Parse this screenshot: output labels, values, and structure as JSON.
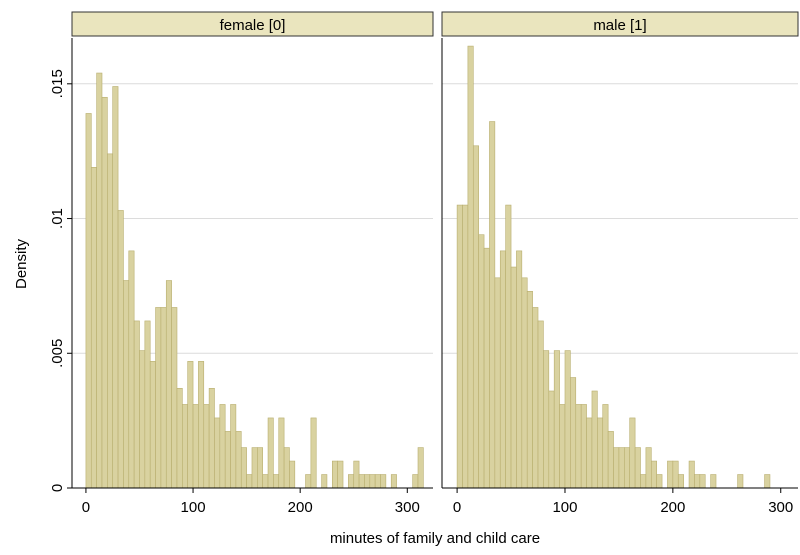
{
  "x_label": "minutes of family and child care",
  "y_label": "Density",
  "chart_data": [
    {
      "type": "histogram",
      "title": "female [0]",
      "color": "#d9d2a0",
      "edge_color": "#b8ae6e",
      "grid": true,
      "bins": [
        0,
        5,
        10,
        15,
        20,
        25,
        30,
        35,
        40,
        45,
        50,
        55,
        60,
        65,
        70,
        75,
        80,
        85,
        90,
        95,
        100,
        105,
        110,
        115,
        120,
        125,
        130,
        135,
        140,
        145,
        150,
        155,
        160,
        165,
        170,
        175,
        180,
        185,
        190,
        195,
        200,
        205,
        210,
        215,
        220,
        225,
        230,
        235,
        240,
        245,
        250,
        255,
        260,
        265,
        270,
        275,
        280,
        285,
        290,
        295,
        300,
        305,
        310,
        315
      ],
      "values": [
        0.0139,
        0.0119,
        0.0154,
        0.0145,
        0.0124,
        0.0149,
        0.0103,
        0.0077,
        0.0088,
        0.0062,
        0.0051,
        0.0062,
        0.0047,
        0.0067,
        0.0067,
        0.0077,
        0.0067,
        0.0037,
        0.0031,
        0.0047,
        0.0031,
        0.0047,
        0.0031,
        0.0037,
        0.0026,
        0.0031,
        0.0021,
        0.0031,
        0.0021,
        0.0015,
        0.0005,
        0.0015,
        0.0015,
        0.0005,
        0.0026,
        0.0005,
        0.0026,
        0.0015,
        0.001,
        0,
        0,
        0.0005,
        0.0026,
        0,
        0.0005,
        0,
        0.001,
        0.001,
        0,
        0.0005,
        0.001,
        0.0005,
        0.0005,
        0.0005,
        0.0005,
        0.0005,
        0,
        0.0005,
        0,
        0,
        0,
        0.0005,
        0.0015
      ],
      "xlim": [
        -13,
        324
      ],
      "xticks": [
        0,
        100,
        200,
        300
      ],
      "ylim": [
        0,
        0.0167
      ],
      "yticks": [
        0,
        {
          "value": 0.005,
          "label": ".005"
        },
        {
          "value": 0.01,
          "label": ".01"
        },
        {
          "value": 0.015,
          "label": ".015"
        }
      ]
    },
    {
      "type": "histogram",
      "title": "male [1]",
      "color": "#d9d2a0",
      "edge_color": "#b8ae6e",
      "grid": true,
      "bins": [
        0,
        5,
        10,
        15,
        20,
        25,
        30,
        35,
        40,
        45,
        50,
        55,
        60,
        65,
        70,
        75,
        80,
        85,
        90,
        95,
        100,
        105,
        110,
        115,
        120,
        125,
        130,
        135,
        140,
        145,
        150,
        155,
        160,
        165,
        170,
        175,
        180,
        185,
        190,
        195,
        200,
        205,
        210,
        215,
        220,
        225,
        230,
        235,
        240,
        245,
        250,
        255,
        260,
        265,
        270,
        275,
        280,
        285,
        290,
        295
      ],
      "values": [
        0.0105,
        0.0105,
        0.0164,
        0.0127,
        0.0094,
        0.0089,
        0.0136,
        0.0078,
        0.0088,
        0.0105,
        0.0082,
        0.0088,
        0.0078,
        0.0073,
        0.0067,
        0.0062,
        0.0051,
        0.0036,
        0.0051,
        0.0031,
        0.0051,
        0.0041,
        0.0031,
        0.0031,
        0.0026,
        0.0036,
        0.0026,
        0.0031,
        0.0021,
        0.0015,
        0.0015,
        0.0015,
        0.0026,
        0.0015,
        0.0005,
        0.0015,
        0.001,
        0.0005,
        0,
        0.001,
        0.001,
        0.0005,
        0,
        0.001,
        0.0005,
        0.0005,
        0,
        0.0005,
        0,
        0,
        0,
        0,
        0.0005,
        0,
        0,
        0,
        0,
        0.0005,
        0
      ],
      "xlim": [
        -14,
        316
      ],
      "xticks": [
        0,
        100,
        200,
        300
      ],
      "ylim": [
        0,
        0.0167
      ],
      "yticks": [
        0,
        0.005,
        0.01,
        0.015
      ]
    }
  ]
}
